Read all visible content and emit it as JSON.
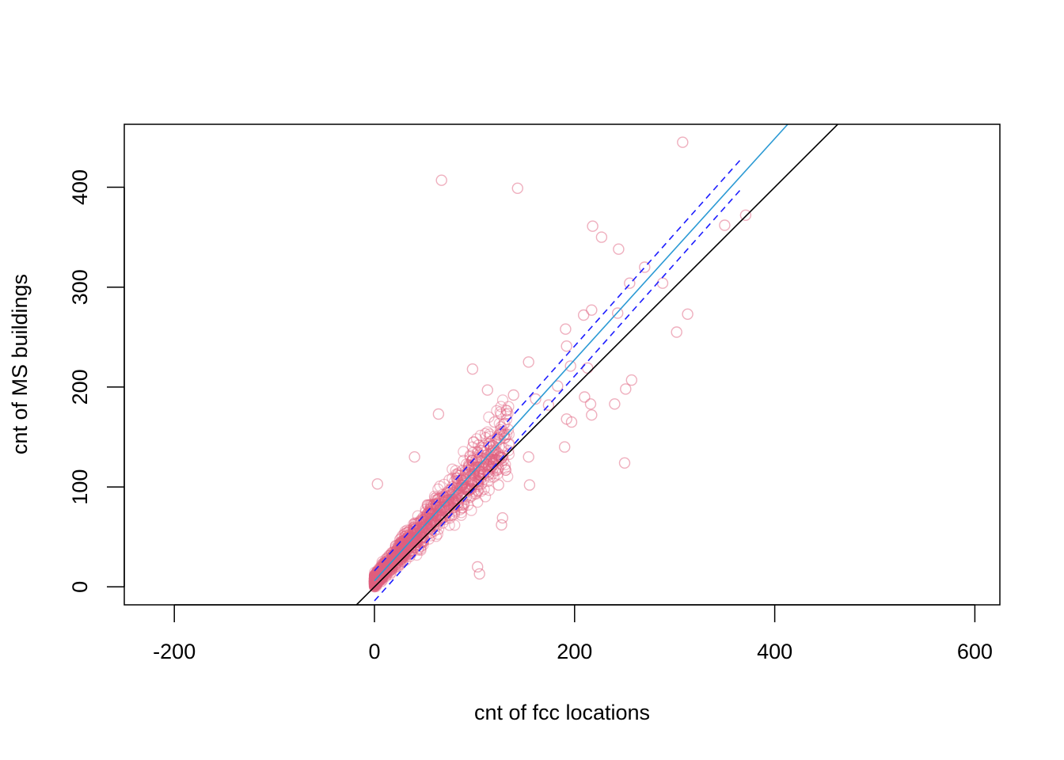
{
  "chart_data": {
    "type": "scatter",
    "xlabel": "cnt of fcc locations",
    "ylabel": "cnt of MS buildings",
    "xlim": [
      -250,
      625
    ],
    "ylim": [
      -18,
      463
    ],
    "x_ticks": [
      -200,
      0,
      200,
      400,
      600
    ],
    "y_ticks": [
      0,
      100,
      200,
      300,
      400
    ],
    "grid": false,
    "legend": "none",
    "colors": {
      "points": "#e0607e",
      "identity_line": "#000000",
      "fit_line": "#2b9ad4",
      "interval_lines": "#1c1cff"
    },
    "lines": [
      {
        "role": "identity",
        "style": "solid",
        "x": [
          -20,
          463
        ],
        "y": [
          -20,
          463
        ]
      },
      {
        "role": "fit",
        "style": "solid",
        "x": [
          0,
          413
        ],
        "y": [
          6,
          463
        ]
      },
      {
        "role": "upper_band",
        "style": "dashed",
        "x": [
          0,
          368
        ],
        "y": [
          16,
          430
        ]
      },
      {
        "role": "lower_band",
        "style": "dashed",
        "x": [
          0,
          368
        ],
        "y": [
          -14,
          400
        ]
      }
    ],
    "series": [
      {
        "points": [
          [
            308,
            445
          ],
          [
            67,
            407
          ],
          [
            143,
            399
          ],
          [
            371,
            372
          ],
          [
            350,
            362
          ],
          [
            218,
            361
          ],
          [
            227,
            350
          ],
          [
            244,
            338
          ],
          [
            270,
            320
          ],
          [
            255,
            304
          ],
          [
            288,
            304
          ],
          [
            217,
            277
          ],
          [
            243,
            274
          ],
          [
            313,
            273
          ],
          [
            209,
            272
          ],
          [
            191,
            258
          ],
          [
            302,
            255
          ],
          [
            192,
            241
          ],
          [
            154,
            225
          ],
          [
            98,
            218
          ],
          [
            196,
            221
          ],
          [
            213,
            219
          ],
          [
            257,
            207
          ],
          [
            251,
            198
          ],
          [
            183,
            201
          ],
          [
            113,
            197
          ],
          [
            139,
            192
          ],
          [
            161,
            188
          ],
          [
            210,
            190
          ],
          [
            216,
            183
          ],
          [
            240,
            183
          ],
          [
            217,
            172
          ],
          [
            174,
            182
          ],
          [
            192,
            168
          ],
          [
            197,
            165
          ],
          [
            64,
            173
          ],
          [
            120,
            165
          ],
          [
            190,
            140
          ],
          [
            250,
            124
          ],
          [
            154,
            130
          ],
          [
            155,
            102
          ],
          [
            124,
            102
          ],
          [
            127,
            62
          ],
          [
            128,
            69
          ],
          [
            103,
            20
          ],
          [
            105,
            13
          ],
          [
            3,
            103
          ],
          [
            40,
            130
          ]
        ]
      }
    ]
  }
}
